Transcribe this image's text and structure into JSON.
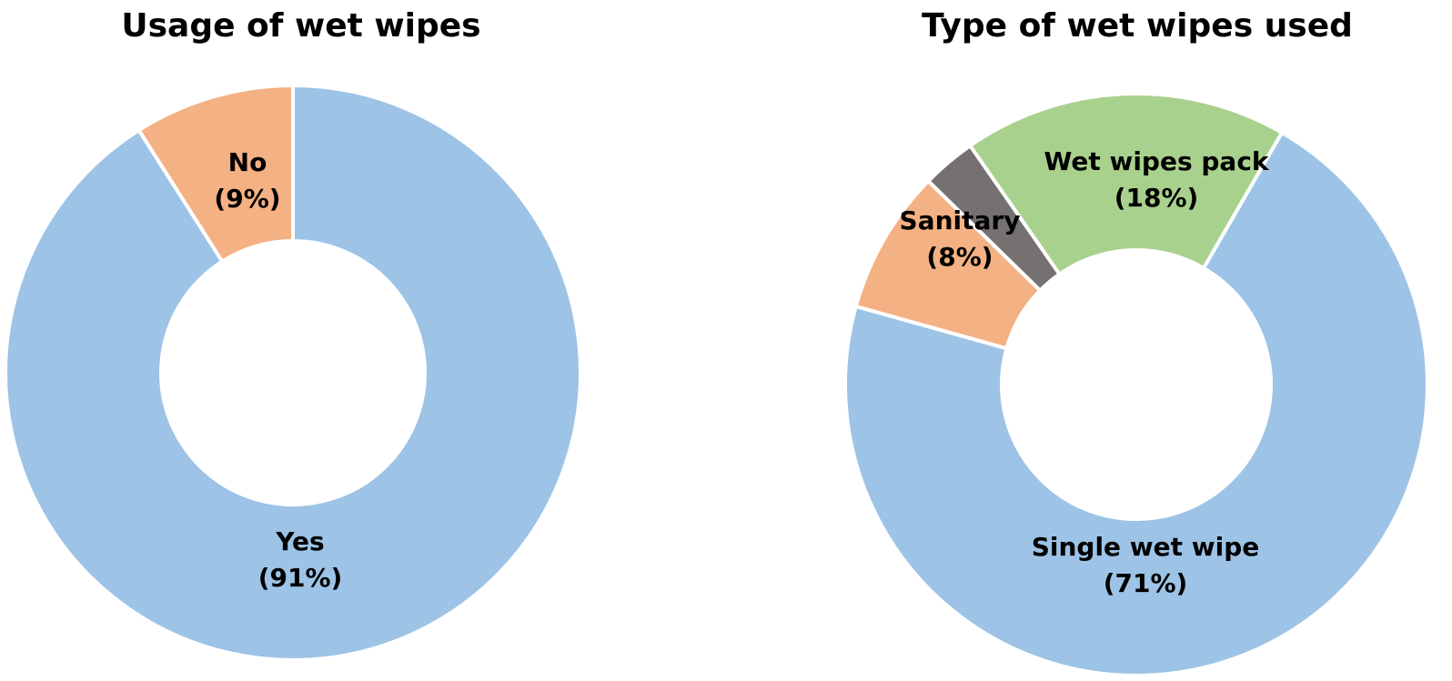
{
  "chart_data": [
    {
      "type": "pie",
      "donut": true,
      "title": "Usage of wet wipes",
      "categories": [
        "Yes",
        "No"
      ],
      "values": [
        91,
        9
      ],
      "value_labels": [
        "(91%)",
        "(9%)"
      ],
      "colors": [
        "#9DC3E6",
        "#F4B183"
      ],
      "start": "12 o'clock",
      "direction": "clockwise"
    },
    {
      "type": "pie",
      "donut": true,
      "title": "Type of wet wipes used",
      "categories": [
        "Single wet wipe",
        "Sanitary",
        "",
        "Wet wipes pack"
      ],
      "values": [
        71,
        8,
        3,
        18
      ],
      "value_labels": [
        "(71%)",
        "(8%)",
        "",
        "(18%)"
      ],
      "colors": [
        "#9DC3E6",
        "#F4B183",
        "#767171",
        "#A9D18E"
      ],
      "start": "1 o'clock",
      "direction": "clockwise"
    }
  ]
}
